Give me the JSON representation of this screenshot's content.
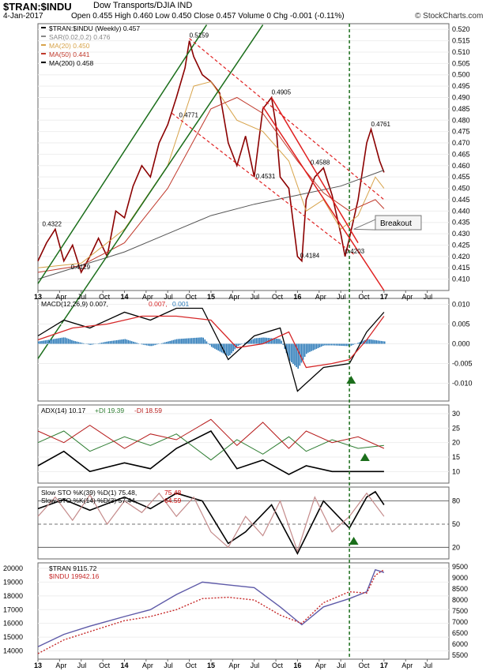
{
  "header": {
    "title": "$TRAN:$INDU",
    "subtitle": "Dow Transports/DJIA  IND",
    "date": "4-Jan-2017",
    "ohlc": "Open 0.455  High 0.460  Low 0.450  Close 0.457  Volume 0  Chg -0.001 (-0.11%)",
    "brand": "© StockCharts.com"
  },
  "chart_data": [
    {
      "type": "line",
      "panel": "price",
      "legend": [
        {
          "label": "$TRAN:$INDU (Weekly) 0.457",
          "color": "#000000"
        },
        {
          "label": "SAR(0.02,0.2) 0.476",
          "color": "#888888"
        },
        {
          "label": "MA(20) 0.450",
          "color": "#d7a34a"
        },
        {
          "label": "MA(50) 0.441",
          "color": "#c0392b"
        },
        {
          "label": "MA(200) 0.458",
          "color": "#000000"
        }
      ],
      "yticks": [
        0.41,
        0.415,
        0.42,
        0.425,
        0.43,
        0.435,
        0.44,
        0.445,
        0.45,
        0.455,
        0.46,
        0.465,
        0.47,
        0.475,
        0.48,
        0.485,
        0.49,
        0.495,
        0.5,
        0.505,
        0.51,
        0.515,
        0.52
      ],
      "ylim": [
        0.405,
        0.5225
      ],
      "xlim": [
        2013.0,
        2017.75
      ],
      "series": [
        {
          "key": "price",
          "color": "#8b0000",
          "x": [
            2013.0,
            2013.1,
            2013.2,
            2013.3,
            2013.4,
            2013.5,
            2013.6,
            2013.7,
            2013.8,
            2013.9,
            2014.0,
            2014.1,
            2014.2,
            2014.3,
            2014.4,
            2014.5,
            2014.6,
            2014.7,
            2014.75,
            2014.8,
            2014.9,
            2015.0,
            2015.1,
            2015.2,
            2015.3,
            2015.4,
            2015.5,
            2015.6,
            2015.7,
            2015.75,
            2015.8,
            2015.9,
            2016.0,
            2016.05,
            2016.1,
            2016.2,
            2016.3,
            2016.4,
            2016.5,
            2016.55,
            2016.6,
            2016.7,
            2016.8,
            2016.85,
            2016.95,
            2017.0
          ],
          "y": [
            0.418,
            0.426,
            0.432,
            0.418,
            0.425,
            0.413,
            0.42,
            0.428,
            0.42,
            0.44,
            0.437,
            0.451,
            0.46,
            0.455,
            0.47,
            0.478,
            0.49,
            0.503,
            0.515,
            0.508,
            0.5,
            0.497,
            0.492,
            0.47,
            0.46,
            0.473,
            0.455,
            0.485,
            0.49,
            0.478,
            0.455,
            0.45,
            0.42,
            0.418,
            0.445,
            0.455,
            0.459,
            0.447,
            0.43,
            0.42,
            0.428,
            0.445,
            0.47,
            0.476,
            0.462,
            0.457
          ]
        },
        {
          "key": "ma20",
          "color": "#d7a34a",
          "x": [
            2013.0,
            2013.5,
            2014.0,
            2014.5,
            2014.8,
            2015.0,
            2015.3,
            2015.6,
            2015.9,
            2016.1,
            2016.3,
            2016.5,
            2016.7,
            2016.9,
            2017.0
          ],
          "y": [
            0.415,
            0.417,
            0.432,
            0.46,
            0.495,
            0.497,
            0.48,
            0.475,
            0.462,
            0.44,
            0.445,
            0.432,
            0.438,
            0.455,
            0.45
          ]
        },
        {
          "key": "ma50",
          "color": "#c0392b",
          "x": [
            2013.0,
            2013.5,
            2014.0,
            2014.5,
            2015.0,
            2015.3,
            2015.6,
            2016.0,
            2016.3,
            2016.6,
            2016.9,
            2017.0
          ],
          "y": [
            0.413,
            0.416,
            0.426,
            0.45,
            0.485,
            0.49,
            0.483,
            0.462,
            0.448,
            0.44,
            0.445,
            0.441
          ]
        },
        {
          "key": "ma200",
          "color": "#555555",
          "x": [
            2013.0,
            2013.5,
            2014.0,
            2014.5,
            2015.0,
            2015.5,
            2016.0,
            2016.5,
            2017.0
          ],
          "y": [
            0.41,
            0.416,
            0.422,
            0.43,
            0.438,
            0.443,
            0.447,
            0.451,
            0.458
          ]
        }
      ],
      "annotations": [
        {
          "label": "0.5159",
          "x": 2014.75,
          "y": 0.515
        },
        {
          "label": "0.4905",
          "x": 2015.7,
          "y": 0.49
        },
        {
          "label": "0.4761",
          "x": 2016.85,
          "y": 0.476
        },
        {
          "label": "0.4771",
          "x": 2014.63,
          "y": 0.48
        },
        {
          "label": "0.4588",
          "x": 2016.15,
          "y": 0.459
        },
        {
          "label": "0.4531",
          "x": 2015.52,
          "y": 0.453
        },
        {
          "label": "0.4322",
          "x": 2013.05,
          "y": 0.432
        },
        {
          "label": "0.4129",
          "x": 2013.38,
          "y": 0.413
        },
        {
          "label": "0.4184",
          "x": 2016.03,
          "y": 0.418
        },
        {
          "label": "0.4203",
          "x": 2016.55,
          "y": 0.42
        }
      ],
      "callout": "Breakout"
    },
    {
      "type": "line",
      "panel": "macd",
      "legend": [
        "MACD(12,26,9) 0.007,",
        "0.007,",
        "0.001"
      ],
      "yticks": [
        -0.01,
        -0.005,
        0.0,
        0.005,
        0.01
      ],
      "ylim": [
        -0.0145,
        0.0115
      ],
      "series": [
        {
          "key": "macd",
          "color": "#000000",
          "x": [
            2013.0,
            2013.3,
            2013.6,
            2014.0,
            2014.3,
            2014.6,
            2014.9,
            2015.2,
            2015.5,
            2015.8,
            2016.0,
            2016.3,
            2016.6,
            2016.8,
            2017.0
          ],
          "y": [
            0.002,
            0.006,
            0.004,
            0.008,
            0.006,
            0.009,
            0.009,
            -0.004,
            0.002,
            0.004,
            -0.012,
            -0.006,
            -0.005,
            0.003,
            0.008
          ]
        },
        {
          "key": "signal",
          "color": "#d62728",
          "x": [
            2013.0,
            2013.4,
            2013.8,
            2014.2,
            2014.6,
            2015.0,
            2015.3,
            2015.6,
            2015.9,
            2016.1,
            2016.4,
            2016.6,
            2016.8,
            2017.0
          ],
          "y": [
            0.001,
            0.004,
            0.005,
            0.007,
            0.007,
            0.006,
            -0.001,
            0.0,
            0.003,
            -0.006,
            -0.005,
            -0.004,
            0.001,
            0.007
          ]
        }
      ],
      "histogram_color": "#2b7ab8"
    },
    {
      "type": "line",
      "panel": "adx",
      "legend": [
        "ADX(14) 10.17",
        "+DI 19.39",
        "-DI 18.59"
      ],
      "yticks": [
        10,
        15,
        20,
        25,
        30
      ],
      "ylim": [
        6,
        33
      ],
      "series": [
        {
          "key": "adx",
          "color": "#000000",
          "x": [
            2013.0,
            2013.3,
            2013.6,
            2014.0,
            2014.3,
            2014.6,
            2015.0,
            2015.3,
            2015.6,
            2015.9,
            2016.1,
            2016.4,
            2016.7,
            2017.0
          ],
          "y": [
            12,
            17,
            10,
            13,
            11,
            18,
            24,
            11,
            14,
            9,
            12,
            10,
            10,
            10
          ]
        },
        {
          "key": "plus_di",
          "color": "#2e7d32",
          "x": [
            2013.0,
            2013.3,
            2013.6,
            2014.0,
            2014.3,
            2014.6,
            2015.0,
            2015.3,
            2015.6,
            2015.9,
            2016.1,
            2016.4,
            2016.7,
            2017.0
          ],
          "y": [
            20,
            24,
            17,
            22,
            19,
            23,
            14,
            21,
            16,
            22,
            17,
            21,
            18,
            19
          ]
        },
        {
          "key": "minus_di",
          "color": "#b71c1c",
          "x": [
            2013.0,
            2013.3,
            2013.6,
            2014.0,
            2014.3,
            2014.6,
            2015.0,
            2015.3,
            2015.6,
            2015.9,
            2016.1,
            2016.4,
            2016.7,
            2017.0
          ],
          "y": [
            24,
            20,
            26,
            18,
            23,
            21,
            28,
            19,
            27,
            18,
            24,
            20,
            22,
            18
          ]
        }
      ]
    },
    {
      "type": "line",
      "panel": "stoch",
      "legend": [
        "Slow STO %K(39) %D(1) 75.48,",
        "75.48",
        "Slow STO %K(14) %D(3) 57.44,",
        "64.59"
      ],
      "yticks": [
        20,
        50,
        80
      ],
      "ylim": [
        5,
        98
      ],
      "series": [
        {
          "key": "sto_long",
          "color": "#000000",
          "x": [
            2013.0,
            2013.3,
            2013.6,
            2014.0,
            2014.3,
            2014.6,
            2014.9,
            2015.2,
            2015.4,
            2015.7,
            2016.0,
            2016.3,
            2016.6,
            2016.8,
            2016.9,
            2017.0
          ],
          "y": [
            70,
            82,
            68,
            85,
            70,
            90,
            80,
            25,
            40,
            75,
            12,
            80,
            45,
            85,
            92,
            75
          ]
        },
        {
          "key": "sto_short",
          "color": "#c48a8a",
          "x": [
            2013.0,
            2013.2,
            2013.4,
            2013.6,
            2013.8,
            2014.0,
            2014.2,
            2014.4,
            2014.6,
            2014.8,
            2015.0,
            2015.2,
            2015.4,
            2015.6,
            2015.8,
            2016.0,
            2016.2,
            2016.4,
            2016.6,
            2016.8,
            2017.0
          ],
          "y": [
            60,
            85,
            55,
            88,
            50,
            80,
            65,
            90,
            60,
            85,
            40,
            20,
            60,
            35,
            80,
            15,
            85,
            40,
            60,
            90,
            60
          ]
        }
      ]
    },
    {
      "type": "line",
      "panel": "compare",
      "legend": [
        "$TRAN 9115.72",
        "$INDU 19942.16"
      ],
      "yticks_left": [
        14000,
        15000,
        16000,
        17000,
        18000,
        19000,
        20000
      ],
      "yticks_right": [
        5500,
        6000,
        6500,
        7000,
        7500,
        8000,
        8500,
        9000,
        9500
      ],
      "ylim_left": [
        13400,
        20400
      ],
      "series": [
        {
          "key": "tran",
          "color": "#5e5aa8",
          "x": [
            2013.0,
            2013.3,
            2013.6,
            2014.0,
            2014.3,
            2014.6,
            2014.9,
            2015.2,
            2015.5,
            2015.8,
            2016.05,
            2016.3,
            2016.6,
            2016.8,
            2016.9,
            2017.0
          ],
          "y": [
            14300,
            15200,
            15800,
            16500,
            17000,
            18100,
            19000,
            18800,
            18600,
            17200,
            15900,
            17200,
            17800,
            18300,
            19900,
            19700
          ]
        },
        {
          "key": "indu",
          "color": "#c62828",
          "x": [
            2013.0,
            2013.3,
            2013.6,
            2014.0,
            2014.3,
            2014.6,
            2014.9,
            2015.2,
            2015.5,
            2015.8,
            2016.05,
            2016.3,
            2016.6,
            2016.8,
            2016.9,
            2017.0
          ],
          "y": [
            13800,
            14800,
            15400,
            16200,
            16500,
            17000,
            17800,
            17900,
            17700,
            16600,
            16000,
            17500,
            18300,
            18200,
            19500,
            19900
          ]
        }
      ]
    }
  ],
  "xaxis": {
    "labels": [
      "13",
      "Apr",
      "Jul",
      "Oct",
      "14",
      "Apr",
      "Jul",
      "Oct",
      "15",
      "Apr",
      "Jul",
      "Oct",
      "16",
      "Apr",
      "Jul",
      "Oct",
      "17",
      "Apr",
      "Jul"
    ],
    "values": [
      2013.0,
      2013.25,
      2013.5,
      2013.75,
      2014.0,
      2014.25,
      2014.5,
      2014.75,
      2015.0,
      2015.25,
      2015.5,
      2015.75,
      2016.0,
      2016.25,
      2016.5,
      2016.75,
      2017.0,
      2017.25,
      2017.5
    ]
  }
}
